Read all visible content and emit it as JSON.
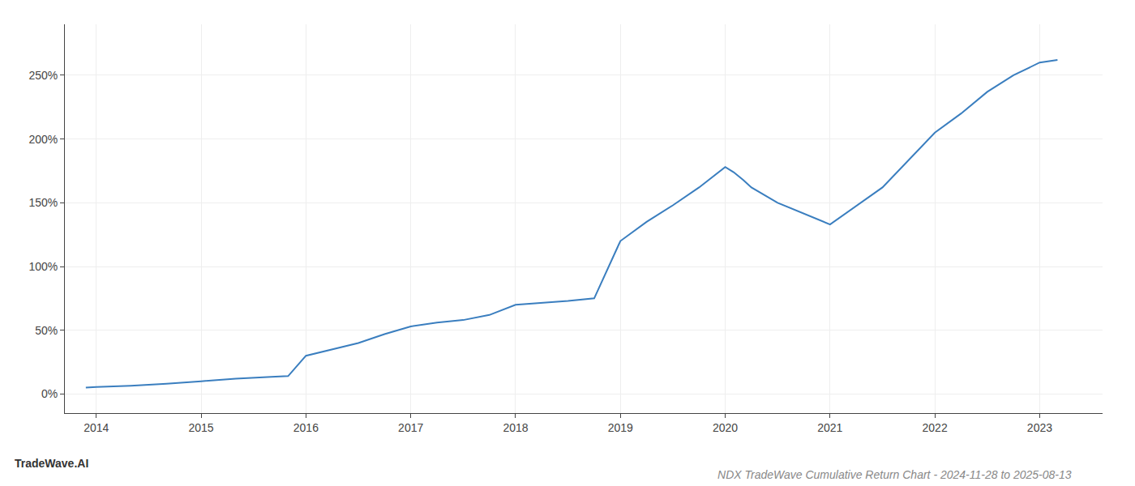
{
  "chart_data": {
    "type": "line",
    "title": "NDX TradeWave Cumulative Return Chart - 2024-11-28 to 2025-08-13",
    "annotations": [
      {
        "text": "TradeWave.AI"
      }
    ],
    "x": [
      2013.9,
      2014.0,
      2014.33,
      2014.67,
      2015.0,
      2015.17,
      2015.33,
      2015.67,
      2015.83,
      2016.0,
      2016.25,
      2016.5,
      2016.75,
      2017.0,
      2017.25,
      2017.5,
      2017.75,
      2018.0,
      2018.08,
      2018.17,
      2018.25,
      2018.5,
      2018.75,
      2019.0,
      2019.25,
      2019.5,
      2019.75,
      2020.0,
      2020.08,
      2020.17,
      2020.25,
      2020.5,
      2021.0,
      2021.5,
      2022.0,
      2022.25,
      2022.5,
      2022.75,
      2023.0,
      2023.17
    ],
    "values": [
      5.0,
      5.5,
      6.5,
      8.0,
      10.0,
      11.0,
      12.0,
      13.5,
      14.0,
      30.0,
      35.0,
      40.0,
      47.0,
      53.0,
      56.0,
      58.0,
      62.0,
      70.0,
      70.5,
      71.0,
      71.5,
      73.0,
      75.0,
      120.0,
      135.0,
      148.0,
      162.0,
      178.0,
      174.0,
      168.0,
      162.0,
      150.0,
      133.0,
      162.0,
      205.0,
      220.0,
      237.0,
      250.0,
      260.0,
      262.0
    ],
    "color": "#3a7ebf",
    "xlim": [
      2013.7,
      2023.6
    ],
    "xticks": [
      2014,
      2015,
      2016,
      2017,
      2018,
      2019,
      2020,
      2021,
      2022,
      2023
    ],
    "ylim": [
      -15,
      290
    ],
    "yticks": [
      {
        "value": 0,
        "label": "0%"
      },
      {
        "value": 50,
        "label": "50%"
      },
      {
        "value": 100,
        "label": "100%"
      },
      {
        "value": 150,
        "label": "150%"
      },
      {
        "value": 200,
        "label": "200%"
      },
      {
        "value": 250,
        "label": "250%"
      }
    ],
    "grid": true
  }
}
